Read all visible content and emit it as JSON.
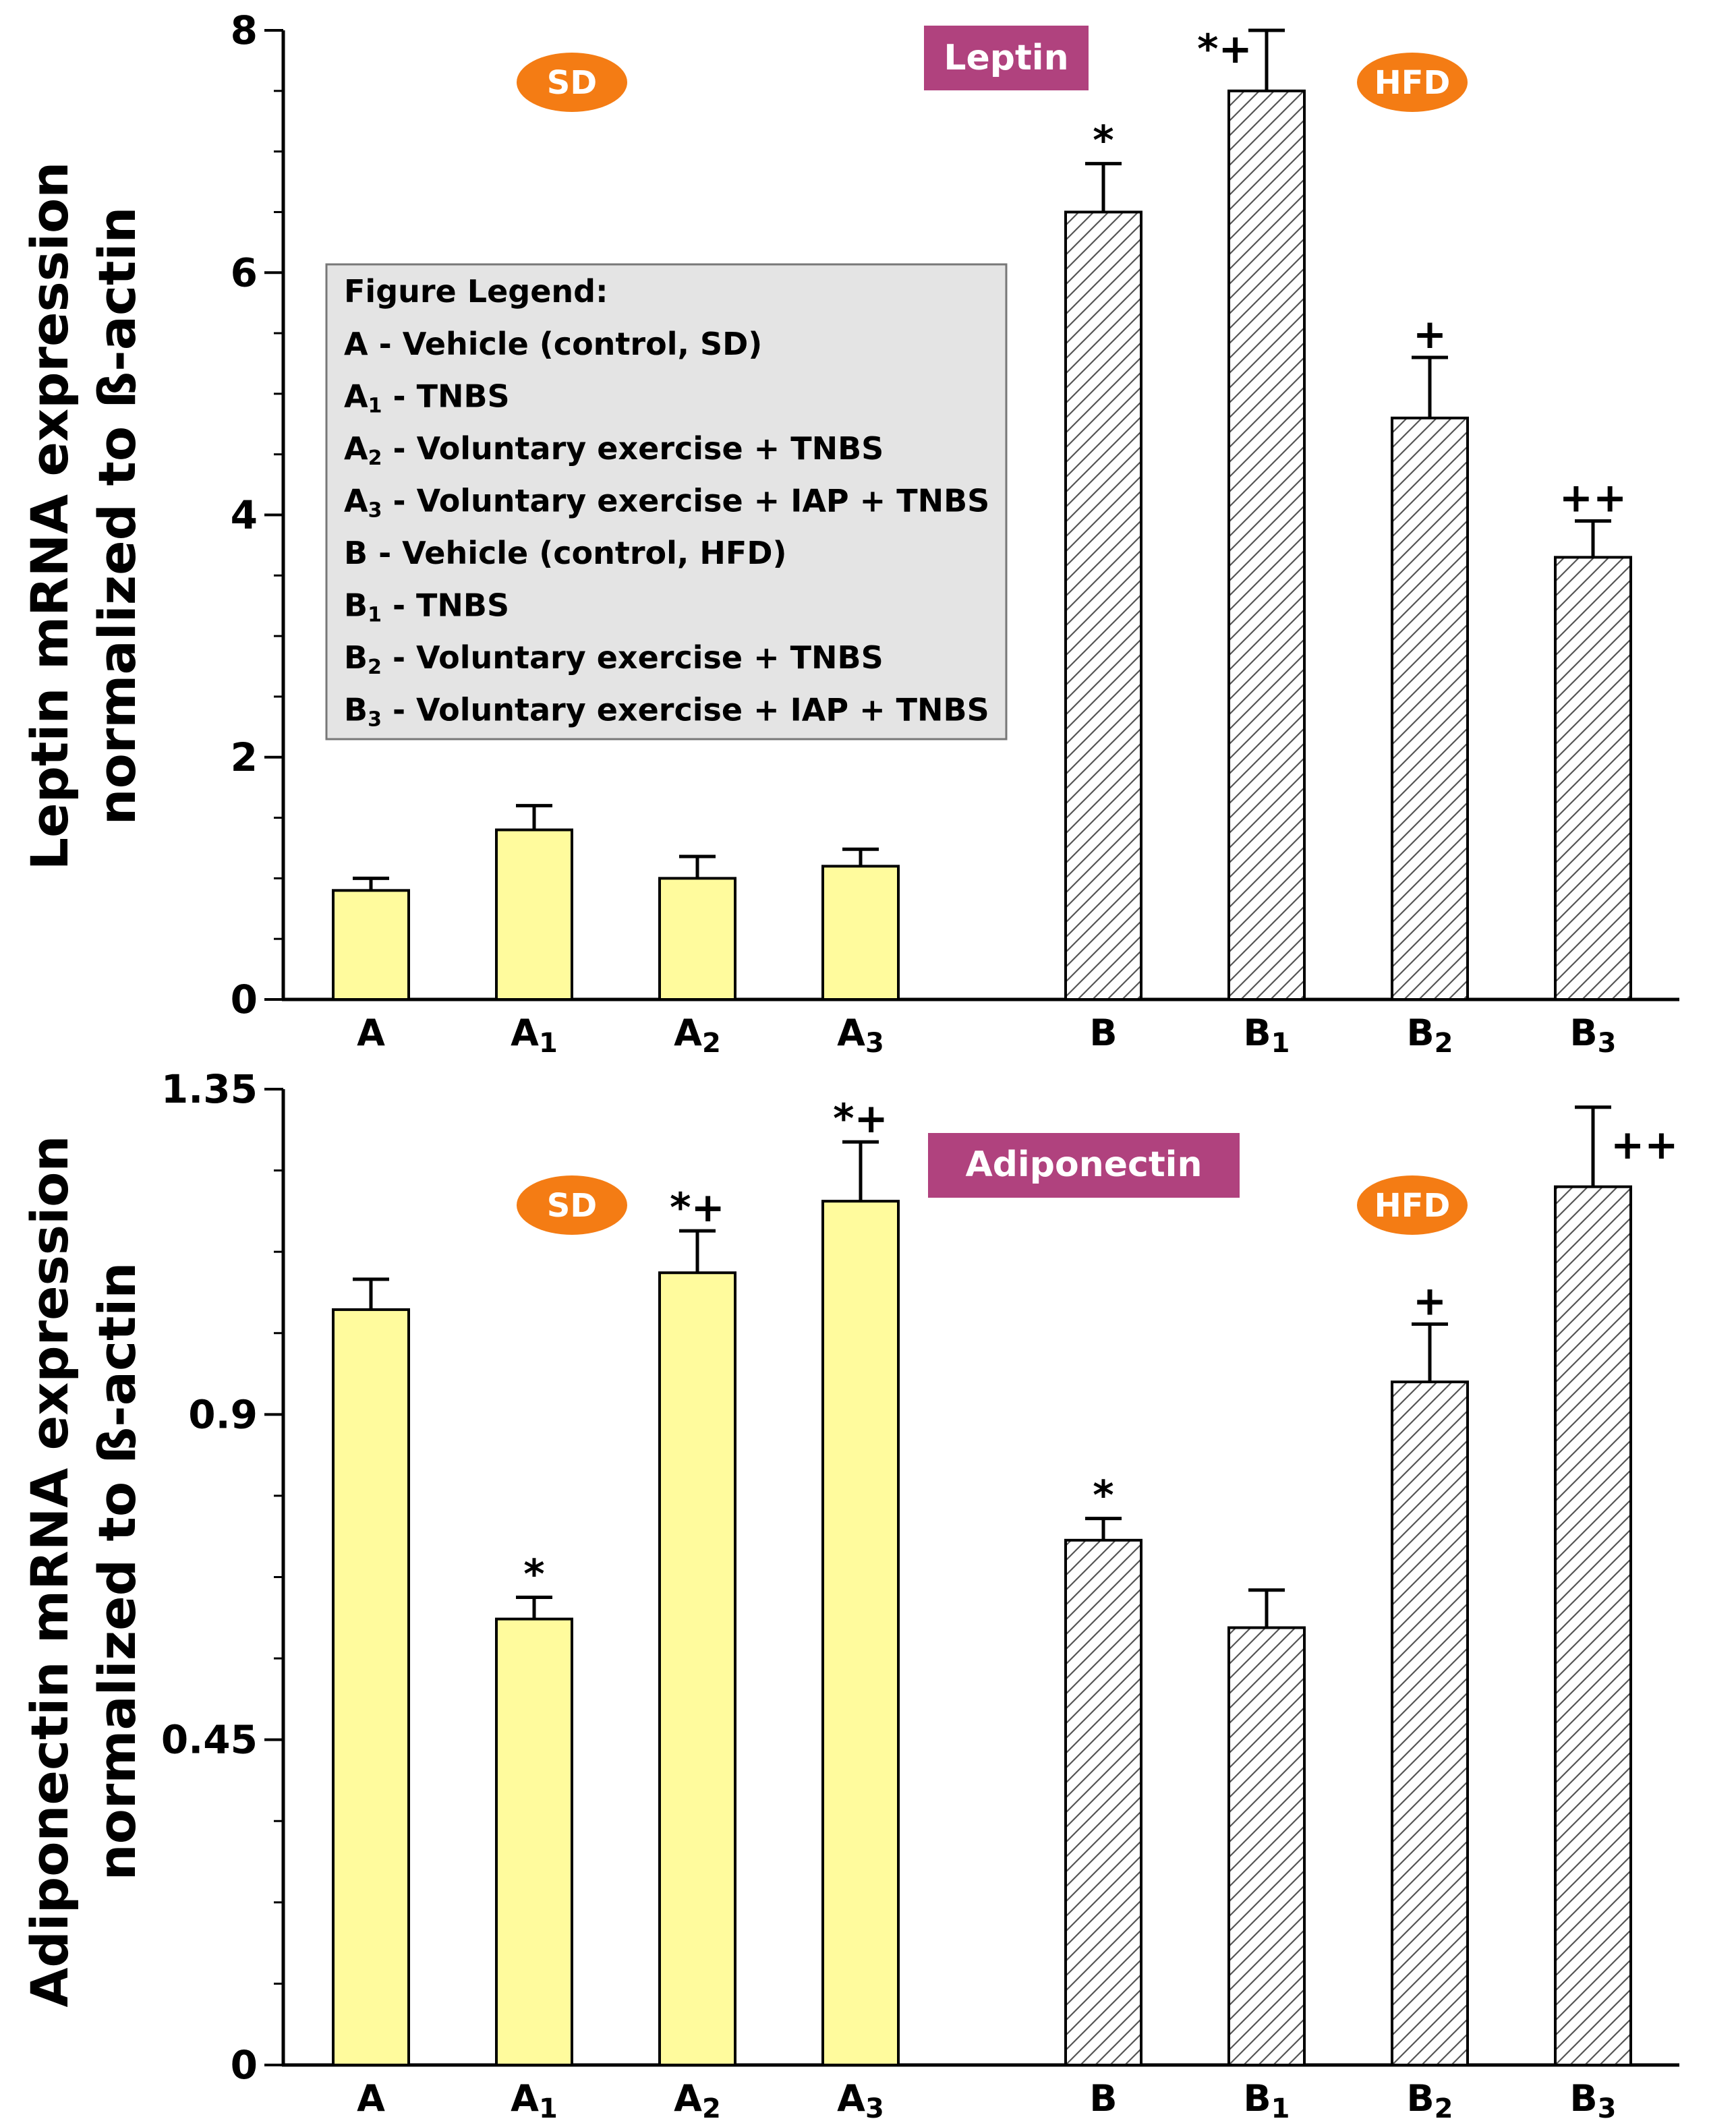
{
  "chart_data": [
    {
      "type": "bar",
      "title": "Leptin",
      "ylabel": [
        "Leptin mRNA expression",
        "normalized to ß-actin"
      ],
      "xlabel": "",
      "ylim": [
        0,
        8
      ],
      "yticks": [
        "0",
        "2",
        "4",
        "6",
        "8"
      ],
      "categories": [
        {
          "base": "A",
          "sub": ""
        },
        {
          "base": "A",
          "sub": "1"
        },
        {
          "base": "A",
          "sub": "2"
        },
        {
          "base": "A",
          "sub": "3"
        },
        {
          "base": "B",
          "sub": ""
        },
        {
          "base": "B",
          "sub": "1"
        },
        {
          "base": "B",
          "sub": "2"
        },
        {
          "base": "B",
          "sub": "3"
        }
      ],
      "values": [
        0.9,
        1.4,
        1.0,
        1.1,
        6.5,
        7.5,
        4.8,
        3.65
      ],
      "errors": [
        0.1,
        0.2,
        0.18,
        0.14,
        0.4,
        0.5,
        0.5,
        0.3
      ],
      "significance": [
        "",
        "",
        "",
        "",
        "*",
        "*+",
        "+",
        "++"
      ],
      "groups": [
        "SD",
        "HFD"
      ],
      "colors": {
        "sd_fill": "#FFFB9D",
        "hfd_fill": "#FFFFFF",
        "badge": "#B0427E",
        "group": "#F47C14",
        "legend_bg": "#E4E4E4"
      },
      "legend": {
        "title": "Figure Legend:",
        "items": [
          {
            "base": "A",
            "sub": "",
            "text": " - Vehicle (control, SD)"
          },
          {
            "base": "A",
            "sub": "1",
            "text": " - TNBS"
          },
          {
            "base": "A",
            "sub": "2",
            "text": " - Voluntary exercise + TNBS"
          },
          {
            "base": "A",
            "sub": "3",
            "text": " - Voluntary exercise + IAP + TNBS"
          },
          {
            "base": "B",
            "sub": "",
            "text": " - Vehicle (control, HFD)"
          },
          {
            "base": "B",
            "sub": "1",
            "text": " - TNBS"
          },
          {
            "base": "B",
            "sub": "2",
            "text": " - Voluntary exercise + TNBS"
          },
          {
            "base": "B",
            "sub": "3",
            "text": " - Voluntary exercise + IAP + TNBS"
          }
        ]
      }
    },
    {
      "type": "bar",
      "title": "Adiponectin",
      "ylabel": [
        "Adiponectin mRNA expression",
        "normalized to ß-actin"
      ],
      "xlabel": "",
      "ylim": [
        0,
        1.35
      ],
      "yticks": [
        "0",
        "0.45",
        "0.9",
        "1.35"
      ],
      "categories": [
        {
          "base": "A",
          "sub": ""
        },
        {
          "base": "A",
          "sub": "1"
        },
        {
          "base": "A",
          "sub": "2"
        },
        {
          "base": "A",
          "sub": "3"
        },
        {
          "base": "B",
          "sub": ""
        },
        {
          "base": "B",
          "sub": "1"
        },
        {
          "base": "B",
          "sub": "2"
        },
        {
          "base": "B",
          "sub": "3"
        }
      ],
      "values": [
        1.045,
        0.617,
        1.096,
        1.195,
        0.726,
        0.605,
        0.945,
        1.215
      ],
      "errors": [
        0.042,
        0.03,
        0.058,
        0.082,
        0.03,
        0.052,
        0.08,
        0.11
      ],
      "significance": [
        "",
        "*",
        "*+",
        "*+",
        "*",
        "",
        "+",
        "++"
      ],
      "groups": [
        "SD",
        "HFD"
      ],
      "colors": {
        "sd_fill": "#FFFB9D",
        "hfd_fill": "#FFFFFF",
        "badge": "#B0427E",
        "group": "#F47C14"
      }
    }
  ]
}
